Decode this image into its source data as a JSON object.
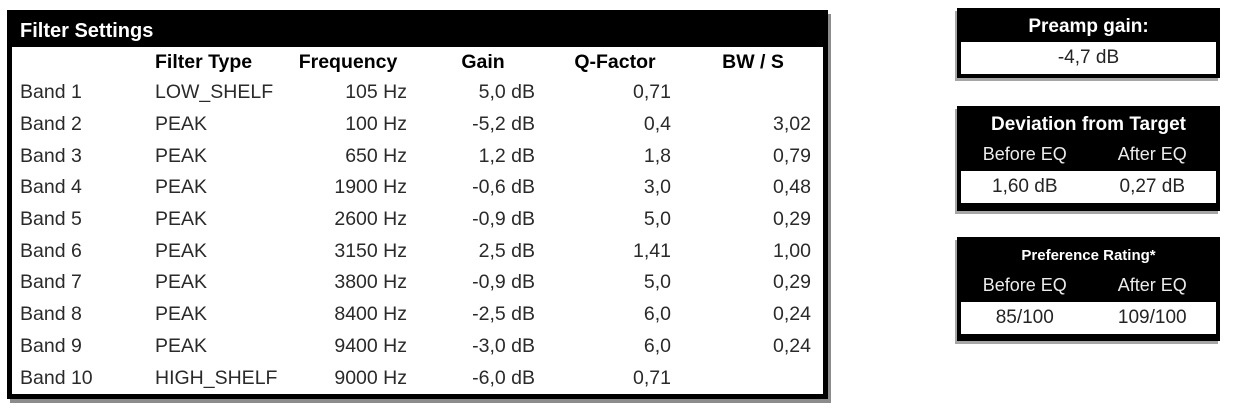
{
  "filter_table": {
    "title": "Filter Settings",
    "columns": [
      "",
      "Filter Type",
      "Frequency",
      "Gain",
      "Q-Factor",
      "BW / S"
    ],
    "rows": [
      {
        "band": "Band 1",
        "filter_type": "LOW_SHELF",
        "frequency": "105 Hz",
        "gain": "5,0 dB",
        "q_factor": "0,71",
        "bw_s": ""
      },
      {
        "band": "Band 2",
        "filter_type": "PEAK",
        "frequency": "100 Hz",
        "gain": "-5,2 dB",
        "q_factor": "0,4",
        "bw_s": "3,02"
      },
      {
        "band": "Band 3",
        "filter_type": "PEAK",
        "frequency": "650 Hz",
        "gain": "1,2 dB",
        "q_factor": "1,8",
        "bw_s": "0,79"
      },
      {
        "band": "Band 4",
        "filter_type": "PEAK",
        "frequency": "1900 Hz",
        "gain": "-0,6 dB",
        "q_factor": "3,0",
        "bw_s": "0,48"
      },
      {
        "band": "Band 5",
        "filter_type": "PEAK",
        "frequency": "2600 Hz",
        "gain": "-0,9 dB",
        "q_factor": "5,0",
        "bw_s": "0,29"
      },
      {
        "band": "Band 6",
        "filter_type": "PEAK",
        "frequency": "3150 Hz",
        "gain": "2,5 dB",
        "q_factor": "1,41",
        "bw_s": "1,00"
      },
      {
        "band": "Band 7",
        "filter_type": "PEAK",
        "frequency": "3800 Hz",
        "gain": "-0,9 dB",
        "q_factor": "5,0",
        "bw_s": "0,29"
      },
      {
        "band": "Band 8",
        "filter_type": "PEAK",
        "frequency": "8400 Hz",
        "gain": "-2,5 dB",
        "q_factor": "6,0",
        "bw_s": "0,24"
      },
      {
        "band": "Band 9",
        "filter_type": "PEAK",
        "frequency": "9400 Hz",
        "gain": "-3,0 dB",
        "q_factor": "6,0",
        "bw_s": "0,24"
      },
      {
        "band": "Band 10",
        "filter_type": "HIGH_SHELF",
        "frequency": "9000 Hz",
        "gain": "-6,0 dB",
        "q_factor": "0,71",
        "bw_s": ""
      }
    ]
  },
  "preamp": {
    "title": "Preamp gain:",
    "value": "-4,7 dB"
  },
  "deviation": {
    "title": "Deviation from Target",
    "col_before": "Before EQ",
    "col_after": "After EQ",
    "before_value": "1,60 dB",
    "after_value": "0,27 dB"
  },
  "preference": {
    "title": "Preference Rating*",
    "col_before": "Before EQ",
    "col_after": "After EQ",
    "before_value": "85/100",
    "after_value": "109/100"
  },
  "colors": {
    "panel_header_bg": "#000000",
    "panel_header_text": "#ffffff",
    "body_text": "#2a2a2a",
    "background": "#ffffff"
  }
}
